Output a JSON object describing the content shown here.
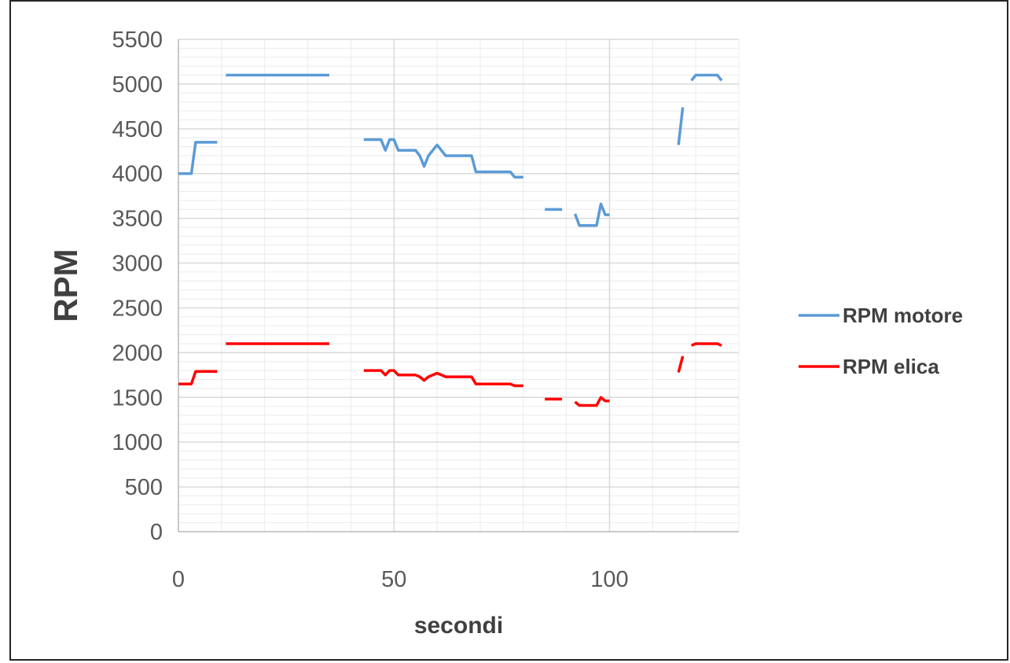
{
  "chart_data": {
    "type": "line",
    "title": "",
    "xlabel": "secondi",
    "ylabel": "RPM",
    "xlim": [
      0,
      130
    ],
    "ylim": [
      0,
      5500
    ],
    "x_ticks": [
      0,
      50,
      100
    ],
    "y_ticks": [
      0,
      500,
      1000,
      1500,
      2000,
      2500,
      3000,
      3500,
      4000,
      4500,
      5000,
      5500
    ],
    "grid": true,
    "legend_position": "right",
    "series": [
      {
        "name": "RPM motore",
        "color": "#5b9bd5",
        "segments": [
          [
            [
              0,
              4000
            ],
            [
              3,
              4000
            ],
            [
              4,
              4350
            ],
            [
              9,
              4350
            ]
          ],
          [
            [
              11,
              5100
            ],
            [
              35,
              5100
            ]
          ],
          [
            [
              43,
              4380
            ],
            [
              47,
              4380
            ],
            [
              48,
              4260
            ],
            [
              49,
              4380
            ],
            [
              50,
              4380
            ],
            [
              51,
              4260
            ],
            [
              55,
              4260
            ],
            [
              56,
              4200
            ],
            [
              57,
              4080
            ],
            [
              58,
              4200
            ],
            [
              60,
              4320
            ],
            [
              61,
              4260
            ],
            [
              62,
              4200
            ],
            [
              68,
              4200
            ],
            [
              69,
              4020
            ],
            [
              77,
              4020
            ],
            [
              78,
              3960
            ],
            [
              80,
              3960
            ]
          ],
          [
            [
              85,
              3600
            ],
            [
              89,
              3600
            ]
          ],
          [
            [
              92,
              3550
            ],
            [
              93,
              3420
            ],
            [
              97,
              3420
            ],
            [
              98,
              3660
            ],
            [
              99,
              3540
            ],
            [
              100,
              3540
            ]
          ],
          [
            [
              116,
              4320
            ],
            [
              117,
              4740
            ]
          ],
          [
            [
              119,
              5040
            ],
            [
              120,
              5100
            ],
            [
              125,
              5100
            ],
            [
              126,
              5040
            ]
          ]
        ]
      },
      {
        "name": "RPM elica",
        "color": "#ff0000",
        "segments": [
          [
            [
              0,
              1650
            ],
            [
              3,
              1650
            ],
            [
              4,
              1790
            ],
            [
              9,
              1790
            ]
          ],
          [
            [
              11,
              2100
            ],
            [
              35,
              2100
            ]
          ],
          [
            [
              43,
              1800
            ],
            [
              47,
              1800
            ],
            [
              48,
              1750
            ],
            [
              49,
              1800
            ],
            [
              50,
              1800
            ],
            [
              51,
              1750
            ],
            [
              55,
              1750
            ],
            [
              56,
              1730
            ],
            [
              57,
              1690
            ],
            [
              58,
              1730
            ],
            [
              60,
              1770
            ],
            [
              61,
              1750
            ],
            [
              62,
              1730
            ],
            [
              68,
              1730
            ],
            [
              69,
              1650
            ],
            [
              77,
              1650
            ],
            [
              78,
              1630
            ],
            [
              80,
              1630
            ]
          ],
          [
            [
              85,
              1480
            ],
            [
              89,
              1480
            ]
          ],
          [
            [
              92,
              1450
            ],
            [
              93,
              1410
            ],
            [
              97,
              1410
            ],
            [
              98,
              1500
            ],
            [
              99,
              1460
            ],
            [
              100,
              1460
            ]
          ],
          [
            [
              116,
              1780
            ],
            [
              117,
              1960
            ]
          ],
          [
            [
              119,
              2080
            ],
            [
              120,
              2100
            ],
            [
              125,
              2100
            ],
            [
              126,
              2080
            ]
          ]
        ]
      }
    ]
  }
}
